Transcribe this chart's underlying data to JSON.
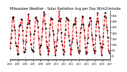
{
  "title": "Milwaukee Weather - Solar Radiation Avg per Day W/m2/minute",
  "title_fontsize": 3.5,
  "line_color": "#ff0000",
  "line_style": "--",
  "line_width": 0.8,
  "marker": ".",
  "marker_size": 1.2,
  "marker_color": "#000000",
  "background_color": "#ffffff",
  "grid_color": "#aaaaaa",
  "yticks": [
    0,
    50,
    100,
    150,
    200,
    250,
    300,
    350
  ],
  "ytick_labels": [
    "0",
    "50",
    "100",
    "150",
    "200",
    "250",
    "300",
    "350"
  ],
  "ylim": [
    -30,
    390
  ],
  "xlim_months": 156,
  "num_years": 13,
  "points_per_year": 12,
  "start_year": 2004
}
